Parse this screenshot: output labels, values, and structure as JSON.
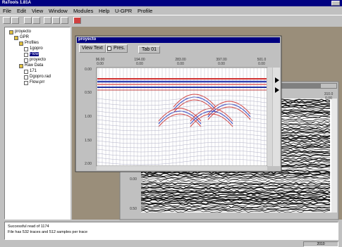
{
  "window": {
    "title": "RaTools 1.81A"
  },
  "menu": [
    "File",
    "Edit",
    "View",
    "Window",
    "Modules",
    "Help",
    "U-GPR",
    "Profile"
  ],
  "tree": [
    "proyecto",
    "GPR",
    "Profiles",
    "1gopro",
    "Flow",
    "proyecto",
    "Raw Data",
    "171",
    "Dgopro.rad",
    "Flow.prr"
  ],
  "profile_window": {
    "title": "proyecto",
    "tabs": [
      "View Text",
      "Pres.",
      "Tab 01"
    ],
    "x_ticks": [
      {
        "top": "96.00",
        "bottom": "0.00"
      },
      {
        "top": "194.00",
        "bottom": "0.00"
      },
      {
        "top": "283.00",
        "bottom": "0.00"
      },
      {
        "top": "397.00",
        "bottom": "0.00"
      },
      {
        "top": "501.0",
        "bottom": "0.00"
      }
    ],
    "y_ticks": [
      "0.00",
      "0.50",
      "1.00",
      "1.50",
      "2.00"
    ]
  },
  "back_window": {
    "x_tick": {
      "top": "310.0",
      "bottom": "0.00"
    },
    "y_ticks": [
      "0.00",
      "0.50"
    ]
  },
  "status": [
    "Successful read of 1174",
    "File has 532 traces and 512 samples per trace"
  ],
  "statusbar": {
    "right": "2010"
  }
}
